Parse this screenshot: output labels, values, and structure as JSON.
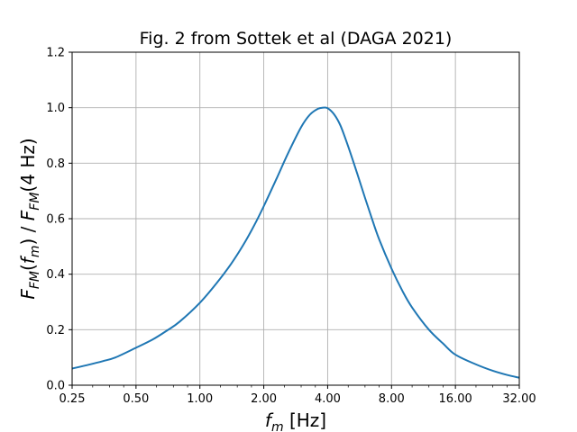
{
  "chart_data": {
    "type": "line",
    "title": "Fig. 2 from Sottek et al (DAGA 2021)",
    "xlabel": {
      "var": "f",
      "sub": "m",
      "unit": "[Hz]"
    },
    "ylabel": {
      "num": "F",
      "num_sub": "FM",
      "num_arg": "f",
      "num_arg_sub": "m",
      "sep": "/",
      "den": "F",
      "den_sub": "FM",
      "den_arg": "4 Hz"
    },
    "xscale": "log2",
    "xlim": [
      0.25,
      32
    ],
    "ylim": [
      0,
      1.2
    ],
    "xticks": [
      0.25,
      0.5,
      1,
      2,
      4,
      8,
      16,
      32
    ],
    "xtick_labels": [
      "0.25",
      "0.50",
      "1.00",
      "2.00",
      "4.00",
      "8.00",
      "16.00",
      "32.00"
    ],
    "yticks": [
      0.0,
      0.2,
      0.4,
      0.6,
      0.8,
      1.0,
      1.2
    ],
    "ytick_labels": [
      "0.0",
      "0.2",
      "0.4",
      "0.6",
      "0.8",
      "1.0",
      "1.2"
    ],
    "grid": true,
    "line_color": "#1f77b4",
    "series": [
      {
        "x": [
          0.25,
          0.3,
          0.35,
          0.4,
          0.5,
          0.6,
          0.7,
          0.8,
          1.0,
          1.2,
          1.4,
          1.6,
          1.8,
          2.0,
          2.3,
          2.6,
          3.0,
          3.3,
          3.6,
          3.8,
          4.0,
          4.3,
          4.6,
          5.0,
          5.5,
          6.0,
          6.5,
          7.0,
          8.0,
          9.0,
          10.0,
          12.0,
          14.0,
          16.0,
          20.0,
          24.0,
          28.0,
          32.0
        ],
        "y": [
          0.06,
          0.074,
          0.087,
          0.1,
          0.135,
          0.165,
          0.197,
          0.228,
          0.297,
          0.368,
          0.436,
          0.505,
          0.575,
          0.645,
          0.745,
          0.835,
          0.93,
          0.975,
          0.996,
          1.0,
          0.998,
          0.975,
          0.935,
          0.86,
          0.765,
          0.675,
          0.595,
          0.525,
          0.42,
          0.34,
          0.28,
          0.2,
          0.15,
          0.11,
          0.075,
          0.052,
          0.037,
          0.027
        ]
      }
    ]
  }
}
